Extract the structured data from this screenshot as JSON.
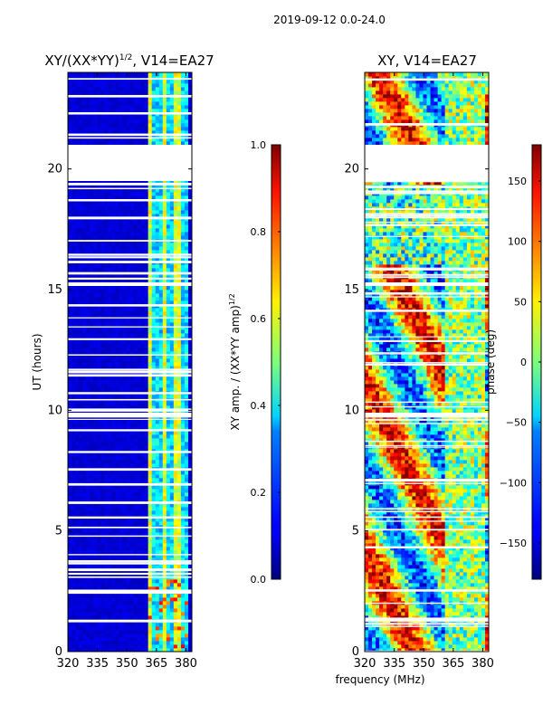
{
  "chart_data": {
    "type": "heatmap",
    "suptitle": "2019-09-12 0.0-24.0",
    "shared_xlabel": "frequency (MHz)",
    "panels": [
      {
        "id": "amp",
        "title": "XY/(XX*YY)",
        "title_sup": "1/2",
        "title_suffix": ", V14=EA27",
        "ylabel": "UT (hours)",
        "xlim": [
          320,
          383
        ],
        "ylim": [
          0,
          24
        ],
        "xticks": [
          "320",
          "335",
          "350",
          "365",
          "380"
        ],
        "yticks": [
          "0",
          "5",
          "10",
          "15",
          "20"
        ],
        "colormap": "jet",
        "colorbar": {
          "range": [
            0.0,
            1.0
          ],
          "ticks": [
            "0.0",
            "0.2",
            "0.4",
            "0.6",
            "0.8",
            "1.0"
          ],
          "label": "XY amp. / (XX*YY amp)",
          "label_sup": "1/2"
        }
      },
      {
        "id": "phase",
        "title": "XY, V14=EA27",
        "ylabel": "",
        "xlim": [
          320,
          383
        ],
        "ylim": [
          0,
          24
        ],
        "xticks": [
          "320",
          "335",
          "350",
          "365",
          "380"
        ],
        "yticks": [
          "0",
          "5",
          "10",
          "15",
          "20"
        ],
        "colormap": "jet",
        "colorbar": {
          "range": [
            -180,
            180
          ],
          "ticks": [
            "−150",
            "−100",
            "−50",
            "0",
            "50",
            "100",
            "150"
          ],
          "label": "phase (deg)"
        }
      }
    ],
    "data_gaps_ut_hours": [
      [
        19.5,
        21.0
      ],
      [
        9.7,
        9.9
      ],
      [
        15.2,
        15.3
      ]
    ],
    "active_band_mhz": [
      360,
      382
    ]
  }
}
